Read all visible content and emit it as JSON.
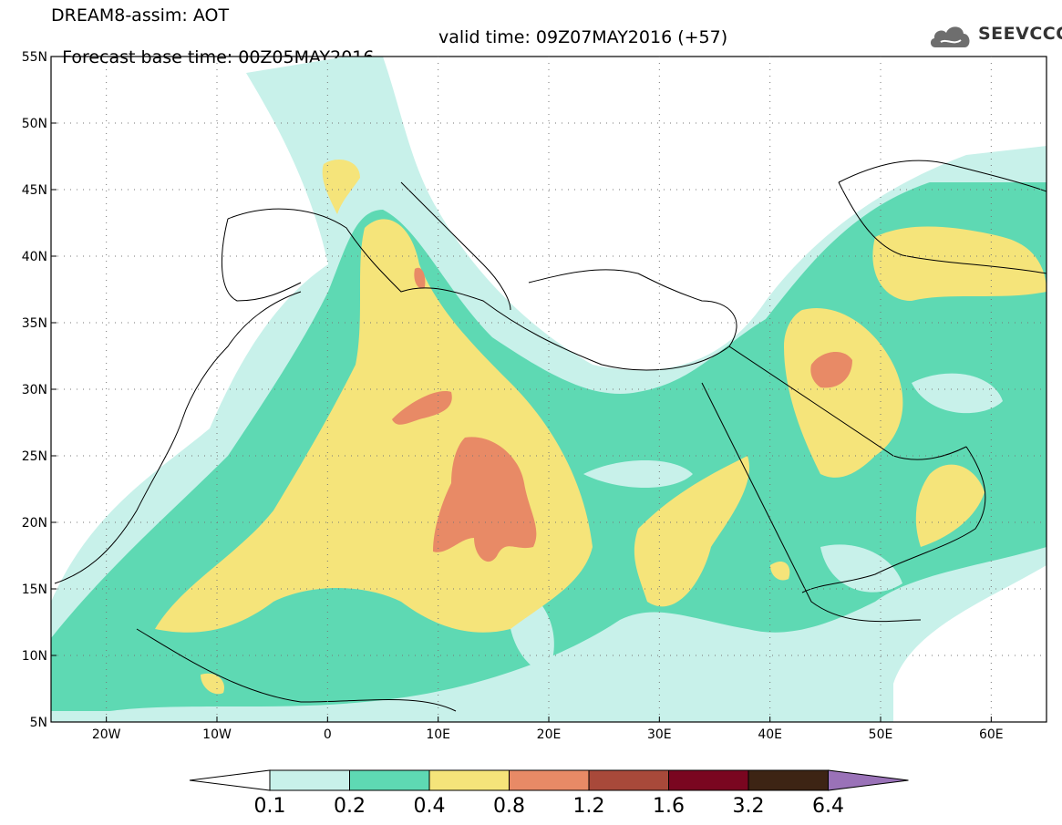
{
  "header": {
    "model_line": "DREAM8-assim: AOT",
    "base_time": "Forecast base time: 00Z05MAY2016",
    "valid_time": "valid time: 09Z07MAY2016 (+57)"
  },
  "logo": {
    "text": "SEEVCCC",
    "icon": "cloud-logo-icon"
  },
  "map": {
    "lon_range": [
      -25,
      65
    ],
    "lat_range": [
      5,
      55
    ],
    "lat_labels": [
      "55N",
      "50N",
      "45N",
      "40N",
      "35N",
      "30N",
      "25N",
      "20N",
      "15N",
      "10N",
      "5N"
    ],
    "lon_labels": [
      "20W",
      "10W",
      "0",
      "10E",
      "20E",
      "30E",
      "40E",
      "50E",
      "60E"
    ]
  },
  "colorbar": {
    "levels": [
      "0.1",
      "0.2",
      "0.4",
      "0.8",
      "1.2",
      "1.6",
      "3.2",
      "6.4"
    ],
    "colors": [
      "#c8f1ea",
      "#5ed9b3",
      "#f5e47a",
      "#e88a66",
      "#a8493a",
      "#7a0620",
      "#3d2414"
    ],
    "under_color": "#ffffff",
    "over_color": "#9a72b8"
  }
}
